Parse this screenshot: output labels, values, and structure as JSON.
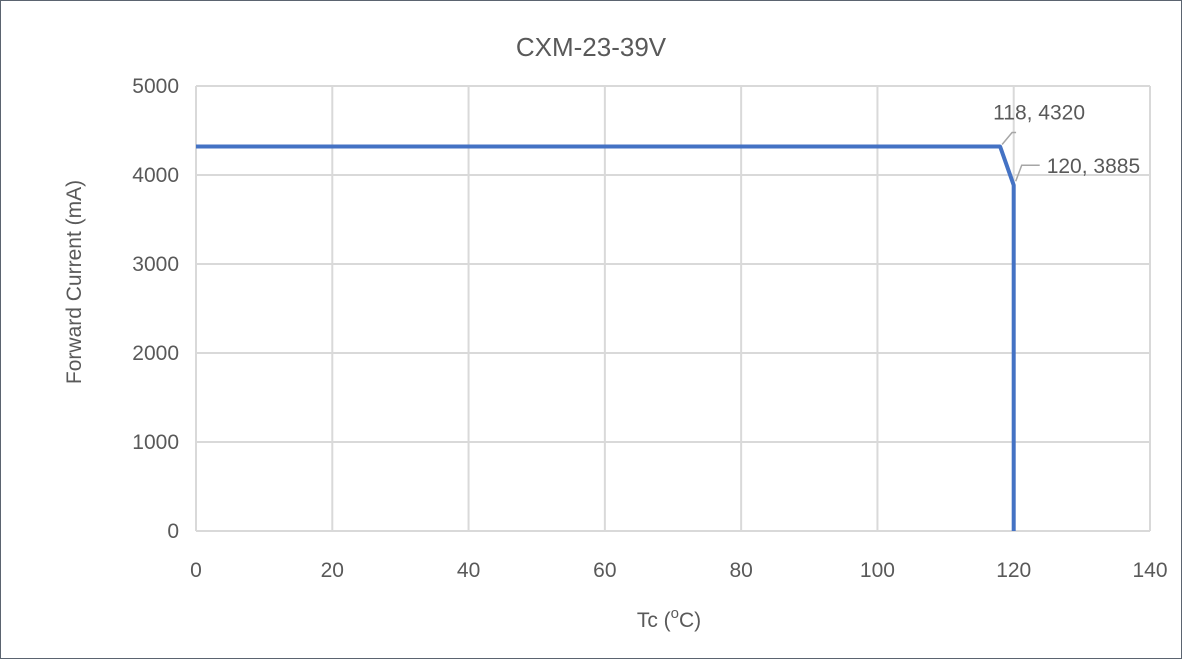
{
  "chart_data": {
    "type": "line",
    "title": "CXM-23-39V",
    "xlabel_main": "Tc (",
    "xlabel_sup": "o",
    "xlabel_end": "C)",
    "ylabel": "Forward Current (mA)",
    "xlim": [
      0,
      140
    ],
    "ylim": [
      0,
      5000
    ],
    "x_ticks": [
      0,
      20,
      40,
      60,
      80,
      100,
      120,
      140
    ],
    "y_ticks": [
      0,
      1000,
      2000,
      3000,
      4000,
      5000
    ],
    "grid": true,
    "series": [
      {
        "color": "#4472c4",
        "x": [
          0,
          118,
          120,
          120
        ],
        "y": [
          4320,
          4320,
          3885,
          0
        ]
      }
    ],
    "data_labels": [
      {
        "text": "118, 4320",
        "x": 118,
        "y": 4320
      },
      {
        "text": "120, 3885",
        "x": 120,
        "y": 3885
      }
    ],
    "colors": {
      "line": "#4472c4",
      "grid": "#d9d9d9",
      "text": "#595959"
    }
  }
}
